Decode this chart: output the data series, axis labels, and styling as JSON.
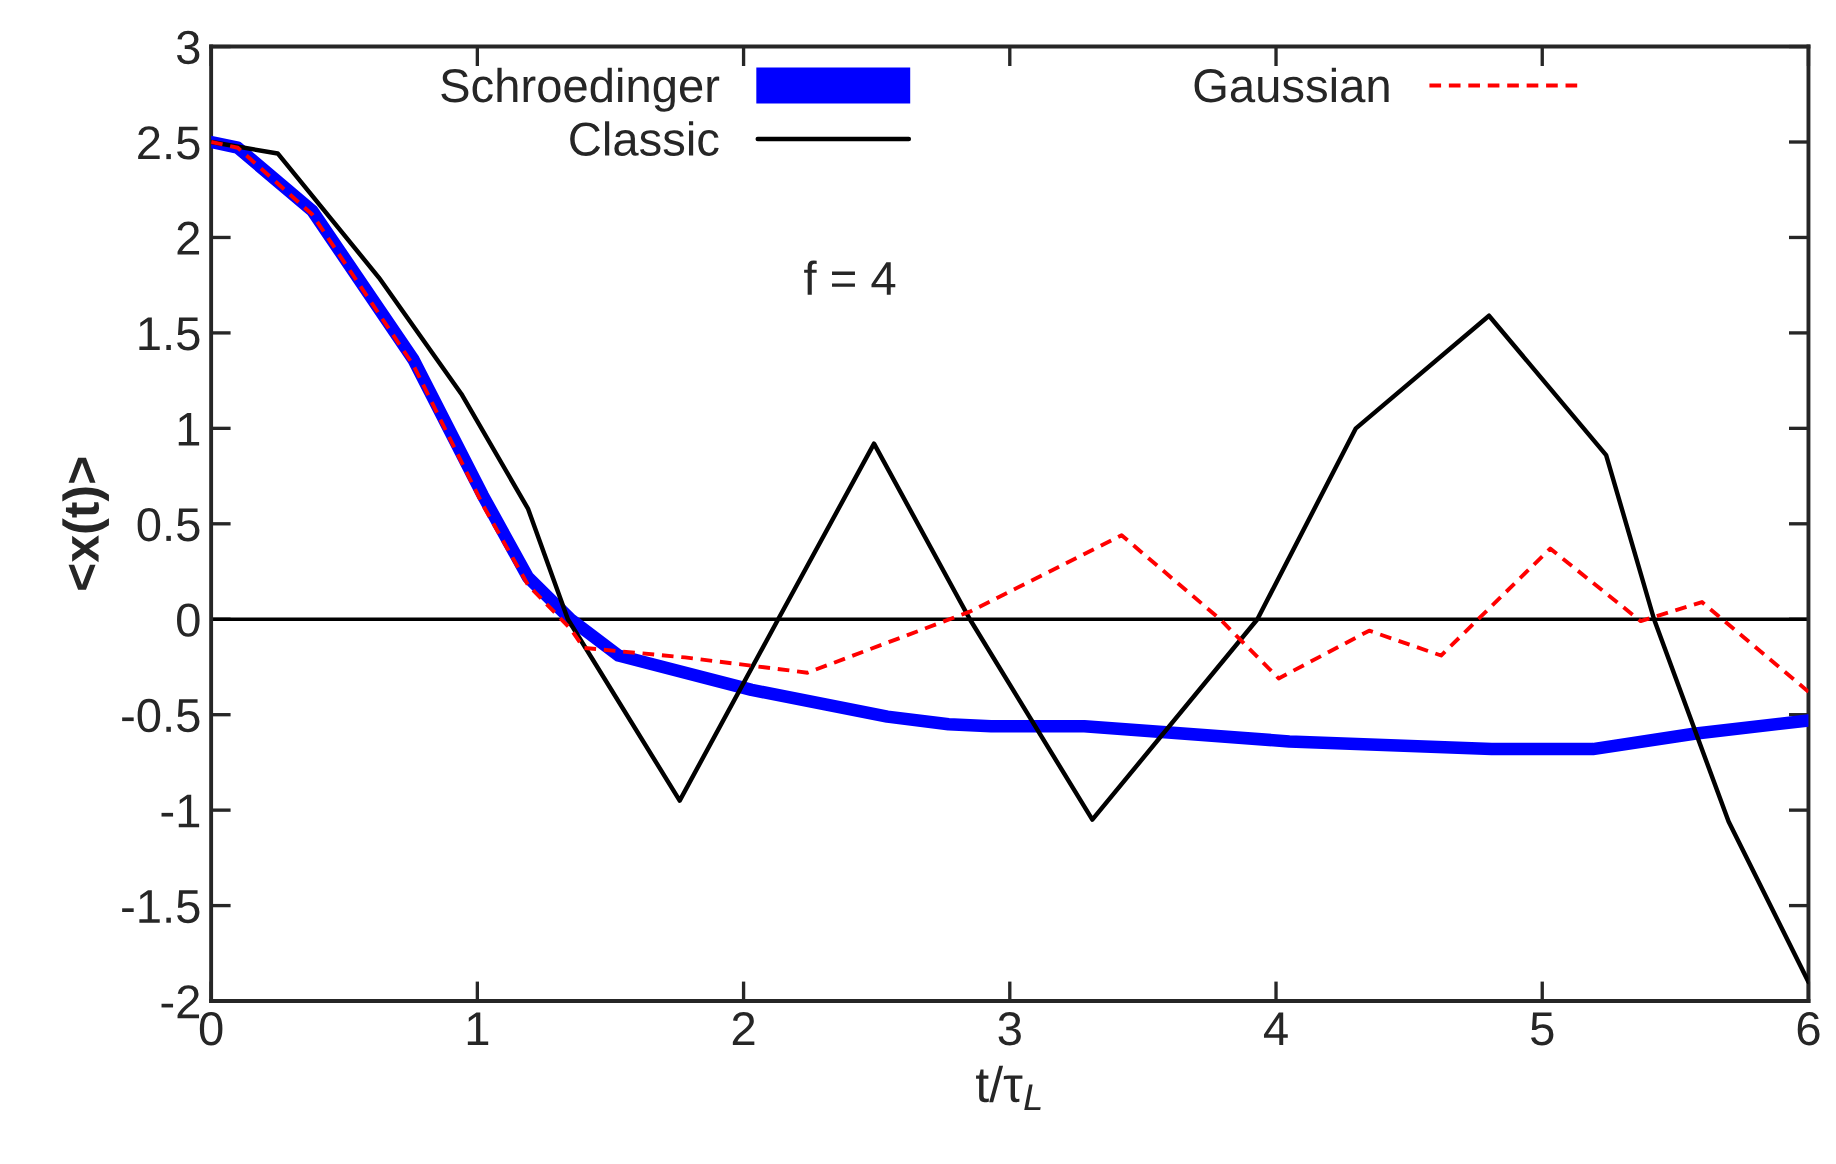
{
  "chart_data": {
    "type": "line",
    "xlabel": "t/τ$_{L}$",
    "ylabel": "<x(t)>",
    "annotations": [
      "f = 4"
    ],
    "xlim": [
      0,
      6
    ],
    "xticks": [
      0,
      1,
      2,
      3,
      4,
      5,
      6
    ],
    "ylim": [
      -2,
      3
    ],
    "yticks": [
      -2,
      -1.5,
      -1,
      -0.5,
      0,
      0.5,
      1,
      1.5,
      2,
      2.5,
      3
    ],
    "ref_lines": [
      {
        "axis": "y",
        "value": 0,
        "color": "#000000"
      }
    ],
    "legend": "top",
    "grid": false,
    "series": [
      {
        "name": "Schroedinger",
        "color": "#0000ff",
        "line_style": "solid",
        "x": [
          0,
          0.1,
          0.38,
          0.76,
          1.02,
          1.19,
          1.35,
          1.53,
          2.03,
          2.54,
          2.77,
          2.93,
          3.28,
          4.05,
          4.81,
          5.19,
          5.57,
          6.0
        ],
        "values": [
          2.5,
          2.47,
          2.14,
          1.36,
          0.65,
          0.22,
          0,
          -0.19,
          -0.37,
          -0.51,
          -0.55,
          -0.56,
          -0.56,
          -0.64,
          -0.68,
          -0.68,
          -0.6,
          -0.53
        ]
      },
      {
        "name": "Classic",
        "color": "#000000",
        "line_style": "solid",
        "x": [
          0,
          0.25,
          0.63,
          0.94,
          1.19,
          1.34,
          1.76,
          2.13,
          2.49,
          2.85,
          3.31,
          3.93,
          4.3,
          4.8,
          5.24,
          5.42,
          5.7,
          6.0
        ],
        "values": [
          2.5,
          2.44,
          1.79,
          1.18,
          0.58,
          0,
          -0.95,
          0,
          0.92,
          0,
          -1.05,
          0,
          1.0,
          1.59,
          0.86,
          0,
          -1.06,
          -1.9
        ]
      },
      {
        "name": "Gaussian",
        "color": "#ff0000",
        "line_style": "dashed",
        "x": [
          0,
          0.1,
          0.38,
          0.76,
          1.02,
          1.19,
          1.35,
          1.4,
          1.78,
          2.24,
          2.85,
          3.42,
          3.79,
          4.01,
          4.35,
          4.62,
          5.03,
          5.37,
          5.6,
          6.0
        ],
        "values": [
          2.5,
          2.47,
          2.12,
          1.33,
          0.6,
          0.18,
          -0.05,
          -0.15,
          -0.2,
          -0.28,
          0.04,
          0.44,
          0,
          -0.31,
          -0.06,
          -0.19,
          0.37,
          -0.01,
          0.09,
          -0.38
        ]
      }
    ]
  }
}
